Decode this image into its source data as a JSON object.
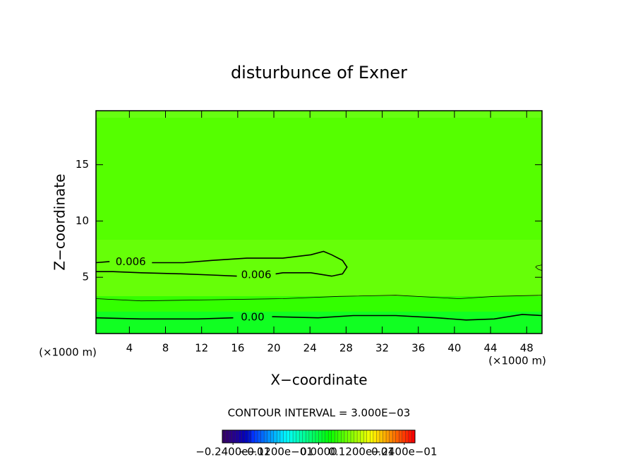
{
  "chart_data": {
    "type": "contour",
    "title": "disturbunce of Exner",
    "x_label": "X−coordinate",
    "y_label": "Z−coordinate",
    "x_unit": "(×1000 m)",
    "y_unit": "(×1000 m)",
    "xlim": [
      0.3,
      49.7
    ],
    "ylim": [
      0,
      19.8
    ],
    "xticks": [
      4,
      8,
      12,
      16,
      20,
      24,
      28,
      32,
      36,
      40,
      44,
      48
    ],
    "yticks": [
      5,
      10,
      15
    ],
    "contours": [
      {
        "label": "0.006",
        "x": [
          0.3,
          1.8,
          null,
          6.5,
          10.0,
          13.1,
          17.0,
          21.0,
          24.1,
          25.5,
          26.4,
          27.6,
          28.1,
          27.6,
          26.4,
          24.1,
          21.0,
          20.2,
          null,
          15.9,
          13.1,
          10.0,
          5.3,
          2.2,
          0.3
        ],
        "y": [
          6.3,
          6.4,
          null,
          6.3,
          6.3,
          6.5,
          6.7,
          6.7,
          7.0,
          7.3,
          7.0,
          6.5,
          5.9,
          5.3,
          5.1,
          5.4,
          5.4,
          5.3,
          null,
          5.1,
          5.2,
          5.3,
          5.4,
          5.5,
          5.5
        ]
      },
      {
        "x": [
          49.7,
          49.1,
          49.0,
          49.3,
          49.7
        ],
        "y": [
          6.1,
          6.0,
          5.9,
          5.7,
          5.6
        ]
      },
      {
        "x": [
          0.3,
          5.3,
          13.1,
          21.0,
          27.2,
          33.5,
          40.5,
          44.4,
          49.7
        ],
        "y": [
          3.1,
          2.9,
          3.0,
          3.1,
          3.3,
          3.4,
          3.1,
          3.3,
          3.4
        ]
      },
      {
        "label": "0.00",
        "x": [
          0.3,
          5.3,
          11.6,
          15.5,
          null,
          19.8,
          24.9,
          28.8,
          33.5,
          38.1,
          41.3,
          44.4,
          47.5,
          49.7
        ],
        "y": [
          1.4,
          1.3,
          1.3,
          1.4,
          null,
          1.5,
          1.4,
          1.6,
          1.6,
          1.4,
          1.2,
          1.3,
          1.7,
          1.6
        ]
      }
    ],
    "contour_interval": "CONTOUR INTERVAL = 3.000E−03",
    "colorbar": {
      "lim": [
        -0.027,
        0.027
      ],
      "ticks": [
        {
          "value": -0.024,
          "label": "−0.2400e−01"
        },
        {
          "value": -0.012,
          "label": "−0.1200e−01"
        },
        {
          "value": 0,
          "label": "0.0000"
        },
        {
          "value": 0.012,
          "label": "0.1200e−01"
        },
        {
          "value": 0.024,
          "label": "0.2400e−01"
        }
      ]
    }
  }
}
